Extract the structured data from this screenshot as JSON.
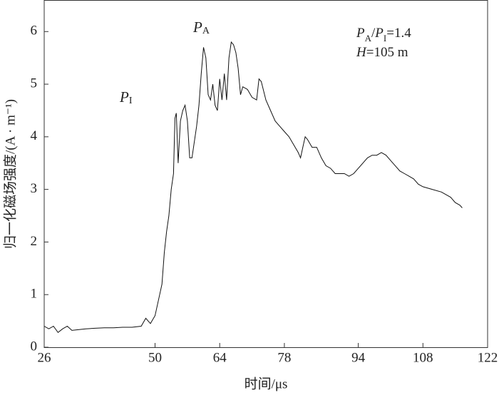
{
  "chart_data": {
    "type": "line",
    "xlabel": "时间/μs",
    "ylabel": "归一化磁场强度/(A · m⁻¹)",
    "annotations": [
      {
        "main": "P",
        "sub": "I"
      },
      {
        "main": "P",
        "sub": "A"
      }
    ],
    "note_lines": [
      [
        "P",
        "A",
        "/",
        "P",
        "I",
        "=1.4"
      ],
      [
        "H",
        "=105  m"
      ]
    ],
    "color": "#111111",
    "xlim": [
      26,
      122
    ],
    "xticks": [
      26,
      50,
      64,
      78,
      94,
      108,
      122
    ],
    "ylim": [
      0,
      6.6
    ],
    "yticks": [
      0,
      1,
      2,
      3,
      4,
      5,
      6
    ],
    "x": [
      26,
      27,
      28,
      29,
      30,
      31,
      32,
      33,
      35,
      37,
      39,
      41,
      43,
      45,
      47,
      48,
      49,
      50,
      51,
      51.5,
      52,
      52.5,
      53,
      53.5,
      54,
      54.3,
      54.6,
      55,
      55.5,
      56,
      56.5,
      57,
      57.5,
      58,
      59,
      59.5,
      60,
      60.5,
      61,
      61.5,
      62,
      62.5,
      63,
      63.5,
      64,
      64.5,
      65,
      65.5,
      66,
      66.5,
      67,
      67.5,
      68,
      68.5,
      69,
      70,
      71,
      72,
      72.5,
      73,
      74,
      75,
      76,
      77,
      78,
      79,
      80,
      81,
      81.5,
      82,
      82.5,
      83,
      84,
      85,
      86,
      87,
      88,
      89,
      90,
      91,
      92,
      93,
      94,
      95,
      96,
      97,
      98,
      99,
      100,
      101,
      102,
      103,
      104,
      105,
      106,
      107,
      108,
      110,
      112,
      114,
      115,
      116,
      116.5
    ],
    "values": [
      0.4,
      0.35,
      0.4,
      0.28,
      0.35,
      0.4,
      0.32,
      0.33,
      0.35,
      0.36,
      0.37,
      0.37,
      0.38,
      0.38,
      0.4,
      0.55,
      0.45,
      0.6,
      1.0,
      1.2,
      1.8,
      2.2,
      2.5,
      3.0,
      3.3,
      4.35,
      4.45,
      3.5,
      4.3,
      4.5,
      4.6,
      4.3,
      3.6,
      3.6,
      4.2,
      4.6,
      5.2,
      5.7,
      5.5,
      4.8,
      4.7,
      5.0,
      4.6,
      4.5,
      5.1,
      4.7,
      5.2,
      4.7,
      5.5,
      5.8,
      5.75,
      5.6,
      5.3,
      4.8,
      4.95,
      4.9,
      4.75,
      4.7,
      5.1,
      5.05,
      4.7,
      4.5,
      4.3,
      4.2,
      4.1,
      4.0,
      3.85,
      3.7,
      3.6,
      3.8,
      4.0,
      3.95,
      3.8,
      3.8,
      3.6,
      3.45,
      3.4,
      3.3,
      3.3,
      3.3,
      3.25,
      3.3,
      3.4,
      3.5,
      3.6,
      3.65,
      3.65,
      3.7,
      3.65,
      3.55,
      3.45,
      3.35,
      3.3,
      3.25,
      3.2,
      3.1,
      3.05,
      3.0,
      2.95,
      2.85,
      2.75,
      2.7,
      2.65
    ]
  }
}
